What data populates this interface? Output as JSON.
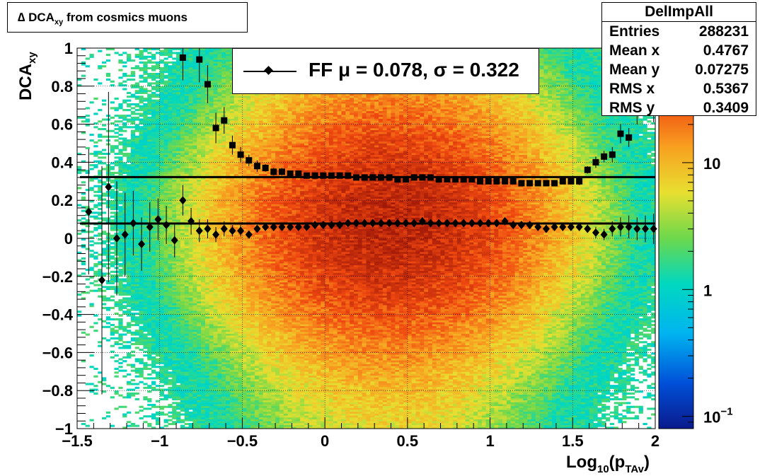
{
  "title": {
    "prefix": "∆ DCA",
    "sub": "xy",
    "suffix": " from cosmics muons"
  },
  "stats": {
    "name": "DelImpAll",
    "rows": [
      {
        "label": "Entries",
        "value": "288231"
      },
      {
        "label": "Mean x",
        "value": "0.4767"
      },
      {
        "label": "Mean y",
        "value": "0.07275"
      },
      {
        "label": "RMS x",
        "value": "0.5367"
      },
      {
        "label": "RMS y",
        "value": "0.3409"
      }
    ]
  },
  "legend": {
    "text": "FF μ =  0.078, σ =   0.322"
  },
  "colors": {
    "marker": "#000000",
    "frame": "#000000"
  },
  "chart_data": {
    "type": "heatmap",
    "xlabel": {
      "main": "Log",
      "sub1": "10",
      "mid": "(p",
      "sub2": "TAv",
      "end": ")"
    },
    "ylabel": {
      "main": "DCA",
      "sub": "xy"
    },
    "xlim": [
      -1.5,
      2
    ],
    "ylim": [
      -1,
      1
    ],
    "xticks": [
      -1.5,
      -1,
      -0.5,
      0,
      0.5,
      1,
      1.5,
      2
    ],
    "xtick_labels": [
      "−1.5",
      "−1",
      "−0.5",
      "0",
      "0.5",
      "1",
      "1.5",
      "2"
    ],
    "yticks": [
      -1,
      -0.8,
      -0.6,
      -0.4,
      -0.2,
      0,
      0.2,
      0.4,
      0.6,
      0.8,
      1
    ],
    "ytick_labels": [
      "−1",
      "−0.8",
      "−0.6",
      "−0.4",
      "−0.2",
      "0",
      "0.2",
      "0.4",
      "0.6",
      "0.8",
      "1"
    ],
    "grid": true,
    "color_scale": "log",
    "z_ticks": [
      {
        "value": 0.1,
        "label_main": "10",
        "label_sup": "−1"
      },
      {
        "value": 1,
        "label_main": "1",
        "label_sup": ""
      },
      {
        "value": 10,
        "label_main": "10",
        "label_sup": ""
      }
    ],
    "zlim": [
      0.08,
      80
    ],
    "density_model": {
      "x_center": 0.4,
      "x_sigma": 0.55,
      "y_center": 0.08,
      "y_sigma": 0.34,
      "peak": 60
    },
    "fit_lines": {
      "mean": 0.078,
      "sigma": 0.322
    },
    "mean_series": {
      "x": [
        -1.43,
        -1.35,
        -1.31,
        -1.26,
        -1.21,
        -1.16,
        -1.11,
        -1.06,
        -1.01,
        -0.96,
        -0.91,
        -0.86,
        -0.81,
        -0.76,
        -0.71,
        -0.66,
        -0.61,
        -0.56,
        -0.51,
        -0.46,
        -0.41,
        -0.36,
        -0.31,
        -0.26,
        -0.21,
        -0.16,
        -0.11,
        -0.06,
        -0.01,
        0.04,
        0.09,
        0.14,
        0.19,
        0.24,
        0.29,
        0.34,
        0.39,
        0.44,
        0.49,
        0.54,
        0.59,
        0.64,
        0.69,
        0.74,
        0.79,
        0.84,
        0.89,
        0.94,
        0.99,
        1.04,
        1.09,
        1.14,
        1.19,
        1.24,
        1.29,
        1.34,
        1.39,
        1.44,
        1.49,
        1.54,
        1.59,
        1.64,
        1.69,
        1.74,
        1.79,
        1.84,
        1.89,
        1.94,
        1.99
      ],
      "y": [
        0.14,
        -0.22,
        0.27,
        0.0,
        0.02,
        0.08,
        -0.03,
        0.06,
        0.1,
        0.07,
        -0.01,
        0.2,
        0.09,
        0.04,
        0.05,
        0.02,
        0.05,
        0.04,
        0.04,
        0.02,
        0.05,
        0.06,
        0.06,
        0.06,
        0.06,
        0.06,
        0.06,
        0.07,
        0.07,
        0.07,
        0.07,
        0.08,
        0.08,
        0.08,
        0.08,
        0.08,
        0.08,
        0.08,
        0.08,
        0.08,
        0.09,
        0.08,
        0.08,
        0.08,
        0.08,
        0.08,
        0.08,
        0.08,
        0.08,
        0.08,
        0.09,
        0.07,
        0.07,
        0.07,
        0.06,
        0.05,
        0.06,
        0.06,
        0.06,
        0.06,
        0.05,
        0.03,
        0.02,
        0.05,
        0.06,
        0.06,
        0.05,
        0.05,
        0.05
      ],
      "err": [
        0.33,
        0.6,
        0.5,
        0.3,
        0.22,
        0.17,
        0.14,
        0.13,
        0.11,
        0.1,
        0.09,
        0.08,
        0.07,
        0.06,
        0.05,
        0.04,
        0.04,
        0.03,
        0.03,
        0.02,
        0.02,
        0.02,
        0.02,
        0.01,
        0.01,
        0.01,
        0.01,
        0.01,
        0.01,
        0.01,
        0.01,
        0.01,
        0.01,
        0.01,
        0.01,
        0.01,
        0.01,
        0.01,
        0.01,
        0.01,
        0.01,
        0.01,
        0.01,
        0.01,
        0.01,
        0.01,
        0.01,
        0.01,
        0.01,
        0.01,
        0.01,
        0.01,
        0.01,
        0.01,
        0.01,
        0.01,
        0.02,
        0.02,
        0.02,
        0.02,
        0.02,
        0.03,
        0.03,
        0.04,
        0.05,
        0.06,
        0.06,
        0.07,
        0.08
      ]
    },
    "rms_series": {
      "x": [
        -0.86,
        -0.76,
        -0.71,
        -0.66,
        -0.61,
        -0.56,
        -0.51,
        -0.46,
        -0.41,
        -0.36,
        -0.31,
        -0.26,
        -0.21,
        -0.16,
        -0.11,
        -0.06,
        -0.01,
        0.04,
        0.09,
        0.14,
        0.19,
        0.24,
        0.29,
        0.34,
        0.39,
        0.44,
        0.49,
        0.54,
        0.59,
        0.64,
        0.69,
        0.74,
        0.79,
        0.84,
        0.89,
        0.94,
        0.99,
        1.04,
        1.09,
        1.14,
        1.19,
        1.24,
        1.29,
        1.34,
        1.39,
        1.44,
        1.49,
        1.54,
        1.59,
        1.64,
        1.69,
        1.74,
        1.79,
        1.84,
        1.89,
        1.94,
        1.99
      ],
      "y": [
        0.95,
        0.94,
        0.81,
        0.58,
        0.62,
        0.49,
        0.44,
        0.41,
        0.38,
        0.37,
        0.35,
        0.35,
        0.34,
        0.34,
        0.33,
        0.33,
        0.33,
        0.33,
        0.33,
        0.33,
        0.32,
        0.32,
        0.32,
        0.32,
        0.32,
        0.31,
        0.31,
        0.32,
        0.32,
        0.32,
        0.31,
        0.31,
        0.31,
        0.31,
        0.31,
        0.3,
        0.3,
        0.3,
        0.3,
        0.3,
        0.29,
        0.29,
        0.29,
        0.29,
        0.29,
        0.3,
        0.3,
        0.3,
        0.36,
        0.4,
        0.43,
        0.44,
        0.55,
        0.53,
        0.66,
        0.72,
        0.68
      ],
      "err": [
        0.12,
        0.12,
        0.1,
        0.08,
        0.07,
        0.05,
        0.04,
        0.03,
        0.03,
        0.02,
        0.02,
        0.02,
        0.01,
        0.01,
        0.01,
        0.01,
        0.01,
        0.01,
        0.01,
        0.01,
        0.01,
        0.01,
        0.01,
        0.01,
        0.01,
        0.01,
        0.01,
        0.01,
        0.01,
        0.01,
        0.01,
        0.01,
        0.01,
        0.01,
        0.01,
        0.01,
        0.01,
        0.01,
        0.01,
        0.01,
        0.01,
        0.01,
        0.01,
        0.01,
        0.01,
        0.01,
        0.01,
        0.02,
        0.02,
        0.03,
        0.03,
        0.04,
        0.05,
        0.05,
        0.06,
        0.07,
        0.07
      ]
    }
  }
}
